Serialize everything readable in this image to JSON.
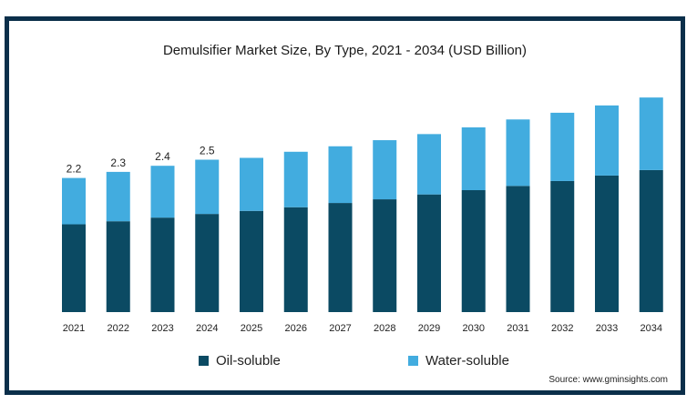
{
  "colors": {
    "frame": "#0b2f4a",
    "oil": "#0b4a63",
    "water": "#42acdf"
  },
  "chart_data": {
    "type": "bar",
    "stacked": true,
    "title": "Demulsifier Market Size, By Type, 2021 - 2034 (USD Billion)",
    "categories": [
      "2021",
      "2022",
      "2023",
      "2024",
      "2025",
      "2026",
      "2027",
      "2028",
      "2029",
      "2030",
      "2031",
      "2032",
      "2033",
      "2034"
    ],
    "series": [
      {
        "name": "Oil-soluble",
        "color": "#0b4a63",
        "values": [
          1.44,
          1.49,
          1.55,
          1.61,
          1.66,
          1.72,
          1.79,
          1.85,
          1.93,
          2.0,
          2.07,
          2.15,
          2.24,
          2.33
        ]
      },
      {
        "name": "Water-soluble",
        "color": "#42acdf",
        "values": [
          0.76,
          0.81,
          0.85,
          0.89,
          0.87,
          0.91,
          0.93,
          0.97,
          0.99,
          1.03,
          1.09,
          1.12,
          1.15,
          1.19
        ]
      }
    ],
    "data_labels": [
      "2.2",
      "2.3",
      "2.4",
      "2.5",
      "",
      "",
      "",
      "",
      "",
      "",
      "",
      "",
      "",
      ""
    ],
    "ylim": [
      0,
      4
    ],
    "grid": false,
    "legend_position": "bottom"
  },
  "source": "Source: www.gminsights.com"
}
